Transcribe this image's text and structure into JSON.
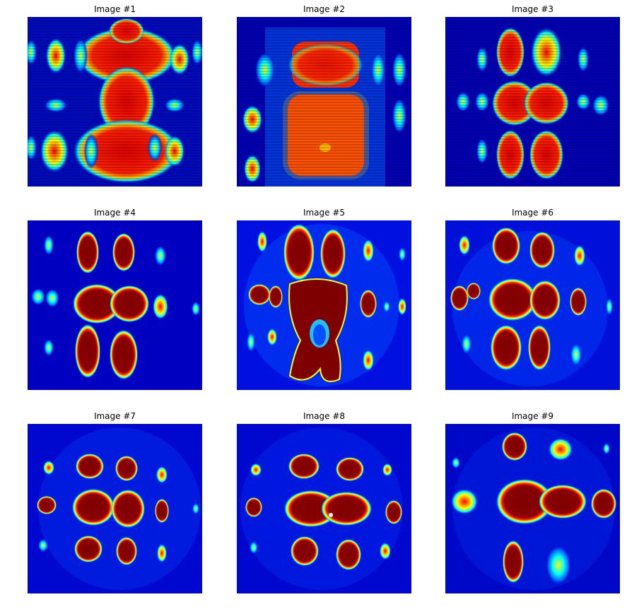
{
  "figure": {
    "panels": [
      {
        "title": "Image #1"
      },
      {
        "title": "Image #2"
      },
      {
        "title": "Image #3"
      },
      {
        "title": "Image #4"
      },
      {
        "title": "Image #5"
      },
      {
        "title": "Image #6"
      },
      {
        "title": "Image #7"
      },
      {
        "title": "Image #8"
      },
      {
        "title": "Image #9"
      }
    ],
    "colormap": {
      "name": "jet",
      "stops": [
        "#00007f",
        "#0000ff",
        "#00ffff",
        "#ffff00",
        "#ff0000",
        "#7f0000"
      ]
    }
  }
}
